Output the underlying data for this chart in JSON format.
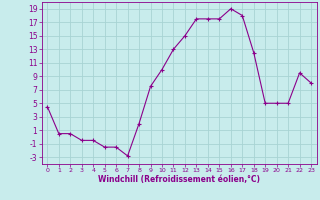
{
  "x": [
    0,
    1,
    2,
    3,
    4,
    5,
    6,
    7,
    8,
    9,
    10,
    11,
    12,
    13,
    14,
    15,
    16,
    17,
    18,
    19,
    20,
    21,
    22,
    23
  ],
  "y": [
    4.5,
    0.5,
    0.5,
    -0.5,
    -0.5,
    -1.5,
    -1.5,
    -2.8,
    2,
    7.5,
    10,
    13,
    15,
    17.5,
    17.5,
    17.5,
    19,
    18,
    12.5,
    5,
    5,
    5,
    9.5,
    8
  ],
  "line_color": "#8b008b",
  "marker": "+",
  "marker_size": 4,
  "bg_color": "#c8ecec",
  "grid_color": "#a8d4d4",
  "xlabel": "Windchill (Refroidissement éolien,°C)",
  "xlabel_color": "#8b008b",
  "tick_color": "#8b008b",
  "ylim": [
    -4,
    20
  ],
  "yticks": [
    -3,
    -1,
    1,
    3,
    5,
    7,
    9,
    11,
    13,
    15,
    17,
    19
  ],
  "xlim": [
    -0.5,
    23.5
  ],
  "xticks": [
    0,
    1,
    2,
    3,
    4,
    5,
    6,
    7,
    8,
    9,
    10,
    11,
    12,
    13,
    14,
    15,
    16,
    17,
    18,
    19,
    20,
    21,
    22,
    23
  ]
}
